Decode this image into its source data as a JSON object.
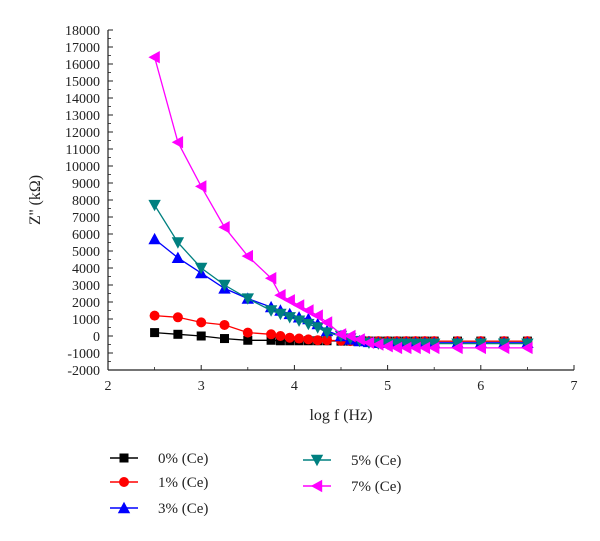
{
  "chart_data": {
    "type": "line",
    "xlabel": "log f (Hz)",
    "ylabel": "Z'' (kΩ)",
    "xlim": [
      2,
      7
    ],
    "ylim": [
      -2000,
      18000
    ],
    "xticks": [
      2,
      3,
      4,
      5,
      6,
      7
    ],
    "yticks": [
      -2000,
      -1000,
      0,
      1000,
      2000,
      3000,
      4000,
      5000,
      6000,
      7000,
      8000,
      9000,
      10000,
      11000,
      12000,
      13000,
      14000,
      15000,
      16000,
      17000,
      18000
    ],
    "grid": false,
    "legend_position": "bottom",
    "series": [
      {
        "name": "0% (Ce)",
        "color": "#000000",
        "marker": "square",
        "x": [
          2.5,
          2.75,
          3.0,
          3.25,
          3.5,
          3.75,
          3.85,
          3.95,
          4.05,
          4.15,
          4.25,
          4.35,
          4.5,
          4.6,
          4.7,
          4.8,
          4.9,
          5.0,
          5.1,
          5.2,
          5.3,
          5.4,
          5.5,
          5.75,
          6.0,
          6.25,
          6.5
        ],
        "y": [
          200,
          100,
          0,
          -150,
          -250,
          -250,
          -280,
          -280,
          -280,
          -280,
          -280,
          -280,
          -300,
          -300,
          -300,
          -300,
          -300,
          -300,
          -300,
          -300,
          -300,
          -300,
          -300,
          -300,
          -300,
          -300,
          -300
        ]
      },
      {
        "name": "1% (Ce)",
        "color": "#ff0000",
        "marker": "circle",
        "x": [
          2.5,
          2.75,
          3.0,
          3.25,
          3.5,
          3.75,
          3.85,
          3.95,
          4.05,
          4.15,
          4.25,
          4.35,
          4.5,
          4.6,
          4.7,
          4.8,
          4.9,
          5.0,
          5.1,
          5.2,
          5.3,
          5.4,
          5.5,
          5.75,
          6.0,
          6.25,
          6.5
        ],
        "y": [
          1200,
          1100,
          800,
          650,
          200,
          100,
          0,
          -100,
          -150,
          -200,
          -250,
          -250,
          -280,
          -300,
          -300,
          -300,
          -300,
          -300,
          -300,
          -300,
          -300,
          -300,
          -300,
          -300,
          -300,
          -300,
          -300
        ]
      },
      {
        "name": "3% (Ce)",
        "color": "#0000ff",
        "marker": "triangle-up",
        "x": [
          2.5,
          2.75,
          3.0,
          3.25,
          3.5,
          3.75,
          3.85,
          3.95,
          4.05,
          4.15,
          4.25,
          4.35,
          4.5,
          4.6,
          4.7,
          4.8,
          4.9,
          5.0,
          5.1,
          5.2,
          5.3,
          5.4,
          5.5,
          5.75,
          6.0,
          6.25,
          6.5
        ],
        "y": [
          5700,
          4600,
          3700,
          2800,
          2200,
          1700,
          1500,
          1300,
          1100,
          1000,
          700,
          300,
          0,
          -200,
          -300,
          -350,
          -400,
          -400,
          -400,
          -400,
          -400,
          -400,
          -400,
          -400,
          -400,
          -400,
          -400
        ]
      },
      {
        "name": "5% (Ce)",
        "color": "#008080",
        "marker": "triangle-down",
        "x": [
          2.5,
          2.75,
          3.0,
          3.25,
          3.5,
          3.75,
          3.85,
          3.95,
          4.05,
          4.15,
          4.25,
          4.35,
          4.5,
          4.6,
          4.7,
          4.8,
          4.9,
          5.0,
          5.1,
          5.2,
          5.3,
          5.4,
          5.5,
          5.75,
          6.0,
          6.25,
          6.5
        ],
        "y": [
          7700,
          5500,
          4000,
          3000,
          2200,
          1500,
          1300,
          1100,
          900,
          700,
          500,
          200,
          0,
          -150,
          -300,
          -400,
          -450,
          -450,
          -450,
          -450,
          -450,
          -450,
          -450,
          -450,
          -450,
          -450,
          -450
        ]
      },
      {
        "name": "7% (Ce)",
        "color": "#ff00ff",
        "marker": "triangle-left",
        "x": [
          2.5,
          2.75,
          3.0,
          3.25,
          3.5,
          3.75,
          3.85,
          3.95,
          4.05,
          4.15,
          4.25,
          4.35,
          4.5,
          4.6,
          4.7,
          4.8,
          4.9,
          5.0,
          5.1,
          5.2,
          5.3,
          5.4,
          5.5,
          5.75,
          6.0,
          6.25,
          6.5
        ],
        "y": [
          16400,
          11400,
          8800,
          6400,
          4700,
          3400,
          2400,
          2100,
          1800,
          1500,
          1200,
          800,
          100,
          0,
          -200,
          -400,
          -500,
          -600,
          -700,
          -700,
          -700,
          -700,
          -700,
          -700,
          -700,
          -700,
          -700
        ]
      }
    ]
  }
}
